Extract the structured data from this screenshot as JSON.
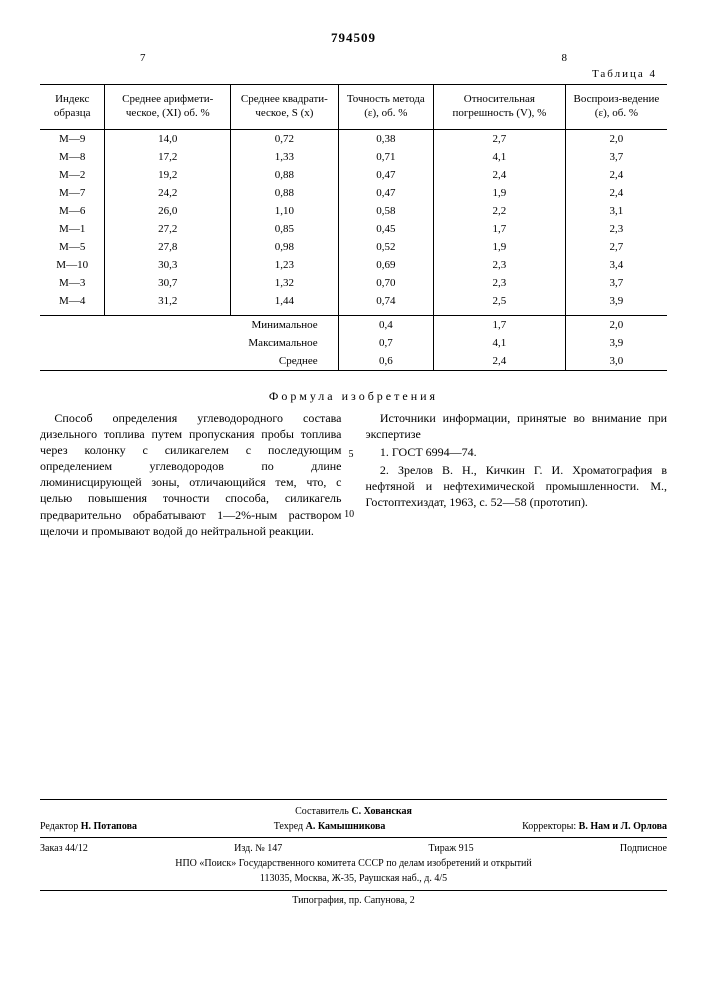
{
  "doc_number": "794509",
  "page_left": "7",
  "page_right": "8",
  "table_label": "Таблица 4",
  "table": {
    "columns": [
      "Индекс образца",
      "Среднее арифмети-ческое, (XI) об. %",
      "Среднее квадрати-ческое, S (x)",
      "Точность метода (ε), об. %",
      "Относительная погрешность (V), %",
      "Воспроиз-ведение (ε), об. %"
    ],
    "rows": [
      [
        "М—9",
        "14,0",
        "0,72",
        "0,38",
        "2,7",
        "2,0"
      ],
      [
        "М—8",
        "17,2",
        "1,33",
        "0,71",
        "4,1",
        "3,7"
      ],
      [
        "М—2",
        "19,2",
        "0,88",
        "0,47",
        "2,4",
        "2,4"
      ],
      [
        "М—7",
        "24,2",
        "0,88",
        "0,47",
        "1,9",
        "2,4"
      ],
      [
        "М—6",
        "26,0",
        "1,10",
        "0,58",
        "2,2",
        "3,1"
      ],
      [
        "М—1",
        "27,2",
        "0,85",
        "0,45",
        "1,7",
        "2,3"
      ],
      [
        "М—5",
        "27,8",
        "0,98",
        "0,52",
        "1,9",
        "2,7"
      ],
      [
        "М—10",
        "30,3",
        "1,23",
        "0,69",
        "2,3",
        "3,4"
      ],
      [
        "М—3",
        "30,7",
        "1,32",
        "0,70",
        "2,3",
        "3,7"
      ],
      [
        "М—4",
        "31,2",
        "1,44",
        "0,74",
        "2,5",
        "3,9"
      ]
    ],
    "summary": [
      {
        "label": "Минимальное",
        "v": [
          "0,4",
          "1,7",
          "2,0"
        ]
      },
      {
        "label": "Максимальное",
        "v": [
          "0,7",
          "4,1",
          "3,9"
        ]
      },
      {
        "label": "Среднее",
        "v": [
          "0,6",
          "2,4",
          "3,0"
        ]
      }
    ]
  },
  "formula_title": "Формула изобретения",
  "body": {
    "p1": "Способ определения углеводородного состава дизельного топлива путем пропускания пробы топлива через колонку с силикагелем с последующим определением углеводородов по длине люминисцирующей зоны, отличающийся тем, что, с целью повышения точности способа, силикагель предварительно обрабатывают 1—2%-ным раствором щелочи и промывают водой до нейтральной реакции.",
    "src_title": "Источники информации, принятые во внимание при экспертизе",
    "src1": "1. ГОСТ 6994—74.",
    "src2": "2. Зрелов В. Н., Кичкин Г. И. Хроматография в нефтяной и нефтехимической промышленности. М., Гостоптехиздат, 1963, с. 52—58 (прототип)."
  },
  "line_num_5": "5",
  "line_num_10": "10",
  "imprint": {
    "compiler_label": "Составитель",
    "compiler": "С. Хованская",
    "editor_label": "Редактор",
    "editor": "Н. Потапова",
    "techred_label": "Техред",
    "techred": "А. Камышникова",
    "corrector_label": "Корректоры:",
    "correctors": "В. Нам и Л. Орлова",
    "order": "Заказ 44/12",
    "izd": "Изд. № 147",
    "tirazh": "Тираж 915",
    "podpisnoe": "Подписное",
    "org": "НПО «Поиск» Государственного комитета СССР по делам изобретений и открытий",
    "addr": "113035, Москва, Ж-35, Раушская наб., д. 4/5",
    "typography": "Типография, пр. Сапунова, 2"
  }
}
